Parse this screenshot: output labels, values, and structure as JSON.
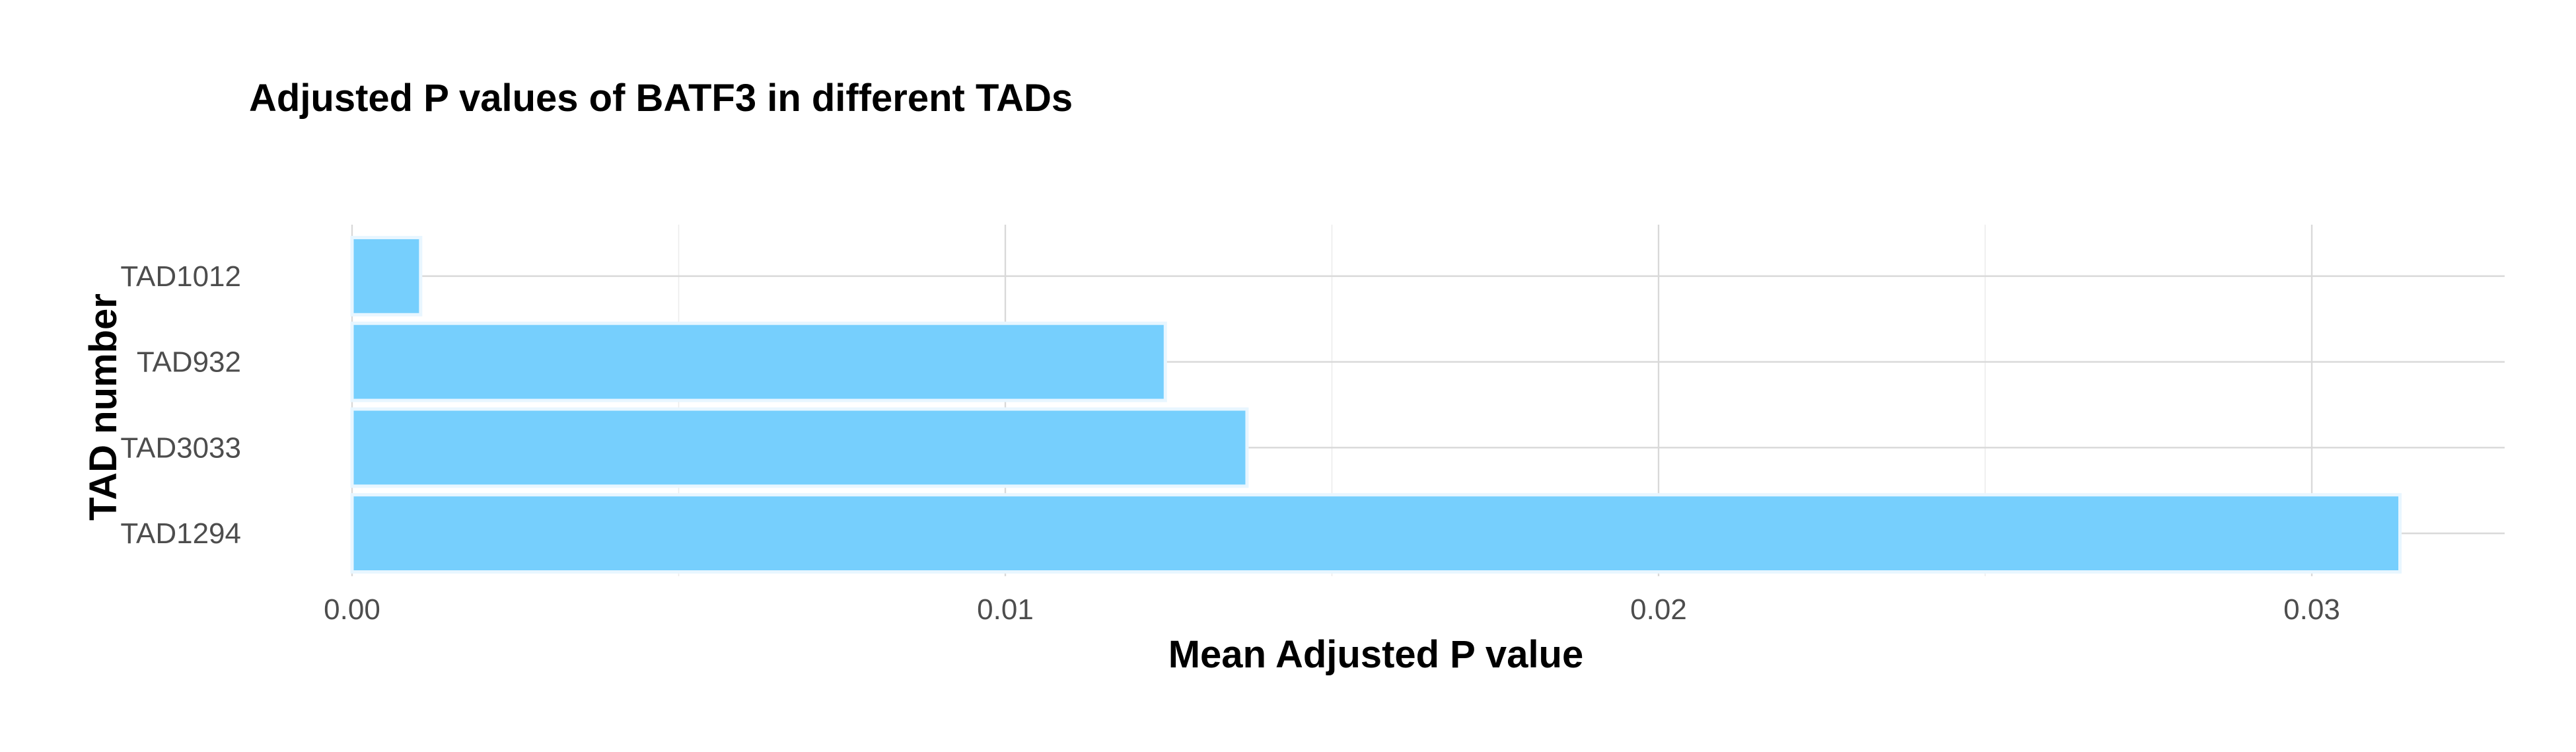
{
  "chart_data": {
    "type": "bar",
    "orientation": "horizontal",
    "title": "Adjusted P values of BATF3 in different TADs",
    "xlabel": "Mean Adjusted P value",
    "ylabel": "TAD number",
    "categories": [
      "TAD1012",
      "TAD932",
      "TAD3033",
      "TAD1294"
    ],
    "values": [
      0.00105,
      0.01245,
      0.0137,
      0.03135
    ],
    "xlim": [
      0,
      0.0329
    ],
    "xticks": [
      0,
      0.01,
      0.02,
      0.03
    ],
    "xtick_labels": [
      "0.00",
      "0.01",
      "0.02",
      "0.03"
    ],
    "grid": true,
    "legend": "none",
    "bar_color": "#76cffd",
    "bar_edge_color": "#e8f6ff"
  }
}
